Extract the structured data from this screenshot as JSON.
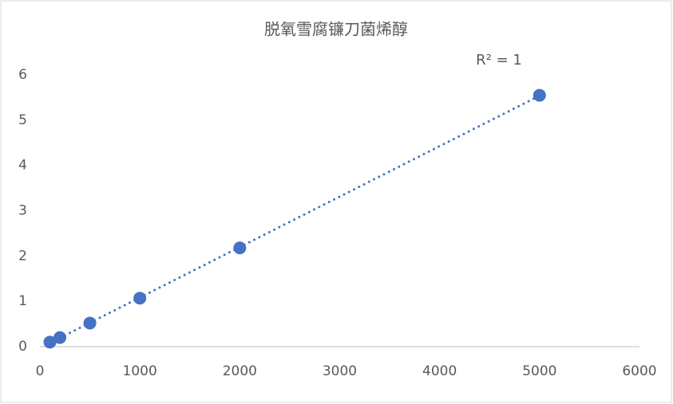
{
  "chart_data": {
    "type": "scatter",
    "title": "脱氧雪腐镰刀菌烯醇",
    "annotation": "R² = 1",
    "x": [
      100,
      200,
      500,
      1000,
      2000,
      5000
    ],
    "values": [
      0.1,
      0.2,
      0.52,
      1.07,
      2.18,
      5.55
    ],
    "color": "#4472c4",
    "trendline": true,
    "xlim": [
      0,
      6000
    ],
    "xticks": [
      0,
      1000,
      2000,
      3000,
      4000,
      5000,
      6000
    ],
    "ylim": [
      0,
      6
    ],
    "yticks": [
      0,
      1,
      2,
      3,
      4,
      5,
      6
    ],
    "grid": false
  }
}
